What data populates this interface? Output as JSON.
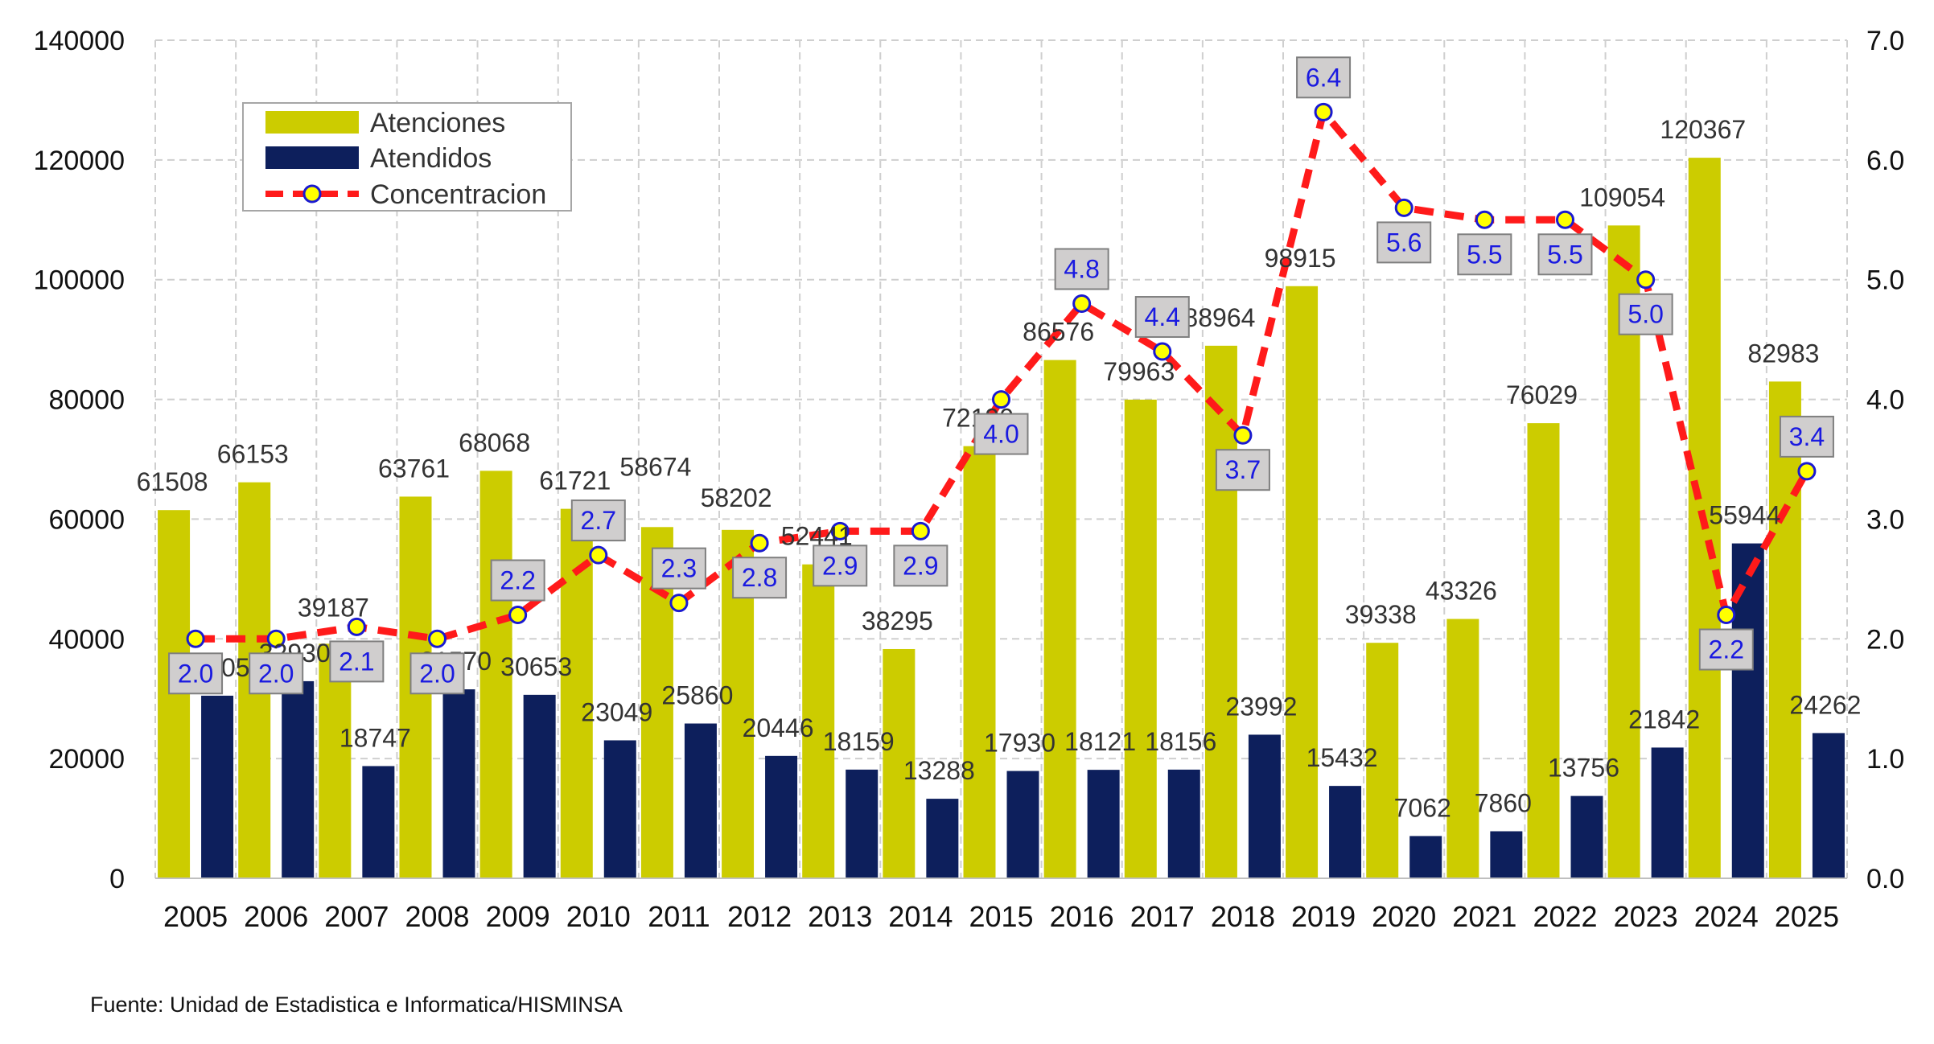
{
  "chart_data": {
    "type": "bar",
    "categories": [
      "2005",
      "2006",
      "2007",
      "2008",
      "2009",
      "2010",
      "2011",
      "2012",
      "2013",
      "2014",
      "2015",
      "2016",
      "2017",
      "2018",
      "2019",
      "2020",
      "2021",
      "2022",
      "2023",
      "2024",
      "2025"
    ],
    "series": [
      {
        "name": "Atenciones",
        "type": "bar",
        "axis": "left",
        "color": "#cccc00",
        "values": [
          61508,
          66153,
          39187,
          63761,
          68068,
          61721,
          58674,
          58202,
          52441,
          38295,
          72190,
          86576,
          79963,
          88964,
          98915,
          39338,
          43326,
          76029,
          109054,
          120367,
          82983
        ],
        "labels": [
          "61508",
          "66153",
          "39187",
          "63761",
          "68068",
          "61721",
          "58674",
          "58202",
          "52441",
          "38295",
          "72190",
          "86576",
          "79963",
          "88964",
          "98915",
          "39338",
          "43326",
          "76029",
          "109054",
          "120367",
          "82983"
        ]
      },
      {
        "name": "Atendidos",
        "type": "bar",
        "axis": "left",
        "color": "#0d1f5c",
        "values": [
          30505,
          32930,
          18747,
          31570,
          30653,
          23049,
          25860,
          20446,
          18159,
          13288,
          17930,
          18121,
          18156,
          23992,
          15432,
          7062,
          7860,
          13756,
          21842,
          55944,
          24262
        ],
        "labels": [
          "30505",
          "32930",
          "18747",
          "31570",
          "30653",
          "23049",
          "25860",
          "20446",
          "18159",
          "13288",
          "17930",
          "18121",
          "18156",
          "23992",
          "15432",
          "7062",
          "7860",
          "13756",
          "21842",
          "55944",
          "24262"
        ]
      },
      {
        "name": "Concentracion",
        "type": "line",
        "axis": "right",
        "color": "#ff1a1a",
        "marker_color": "#ffff00",
        "values": [
          2.0,
          2.0,
          2.1,
          2.0,
          2.2,
          2.7,
          2.3,
          2.8,
          2.9,
          2.9,
          4.0,
          4.8,
          4.4,
          3.7,
          6.4,
          5.6,
          5.5,
          5.5,
          5.0,
          2.2,
          3.4
        ],
        "labels": [
          "2.0",
          "2.0",
          "2.1",
          "2.0",
          "2.2",
          "2.7",
          "2.3",
          "2.8",
          "2.9",
          "2.9",
          "4.0",
          "4.8",
          "4.4",
          "3.7",
          "6.4",
          "5.6",
          "5.5",
          "5.5",
          "5.0",
          "2.2",
          "3.4"
        ]
      }
    ],
    "y_left": {
      "ylim": [
        0,
        140000
      ],
      "ticks": [
        "0",
        "20000",
        "40000",
        "60000",
        "80000",
        "100000",
        "120000",
        "140000"
      ]
    },
    "y_right": {
      "ylim": [
        0,
        7.0
      ],
      "ticks": [
        "0.0",
        "1.0",
        "2.0",
        "3.0",
        "4.0",
        "5.0",
        "6.0",
        "7.0"
      ]
    },
    "grid": true,
    "legend": "top-left",
    "source": "Fuente: Unidad de Estadistica e Informatica/HISMINSA"
  }
}
